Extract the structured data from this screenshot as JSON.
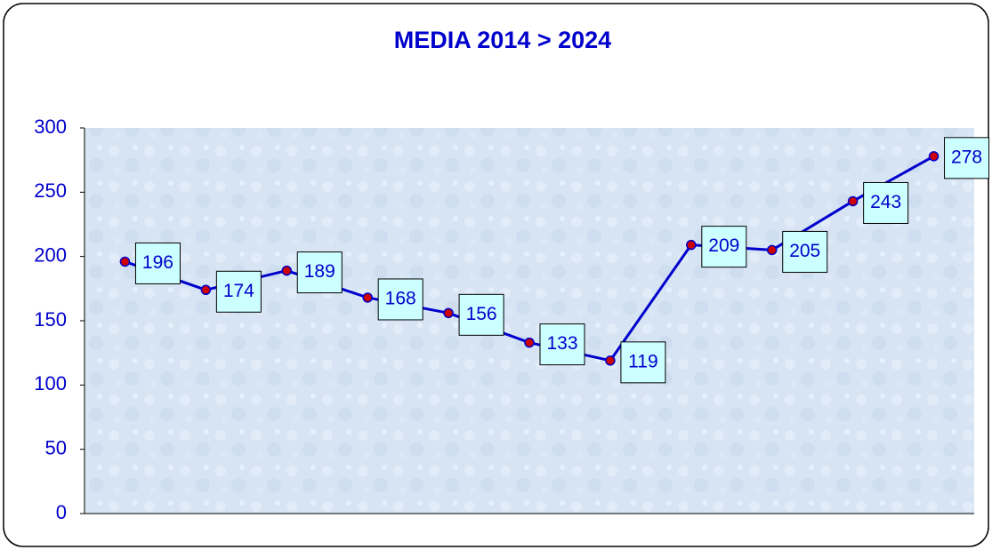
{
  "chart_data": {
    "type": "line",
    "title": "MEDIA 2014 > 2024",
    "categories": [
      null,
      null,
      null,
      null,
      null,
      null,
      null,
      null,
      null,
      null,
      null
    ],
    "series": [
      {
        "name": null,
        "color": "#0000cc",
        "marker_color": "#cc0000",
        "values": [
          196,
          174,
          189,
          168,
          156,
          133,
          119,
          209,
          205,
          243,
          278
        ]
      }
    ],
    "ylim": [
      0,
      300
    ],
    "yticks": [
      0,
      50,
      100,
      150,
      200,
      250,
      300
    ],
    "grid": false
  }
}
